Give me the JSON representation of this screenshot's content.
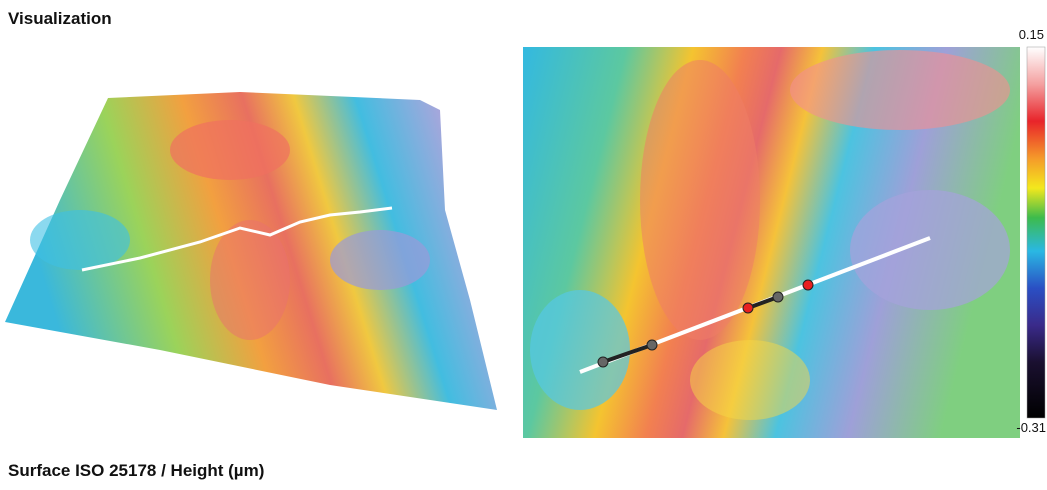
{
  "header": {
    "title": "Visualization"
  },
  "colorbar": {
    "max_label": "0.15",
    "min_label": "-0.31"
  },
  "caption": "Surface ISO 25178 / Height (µm)"
}
